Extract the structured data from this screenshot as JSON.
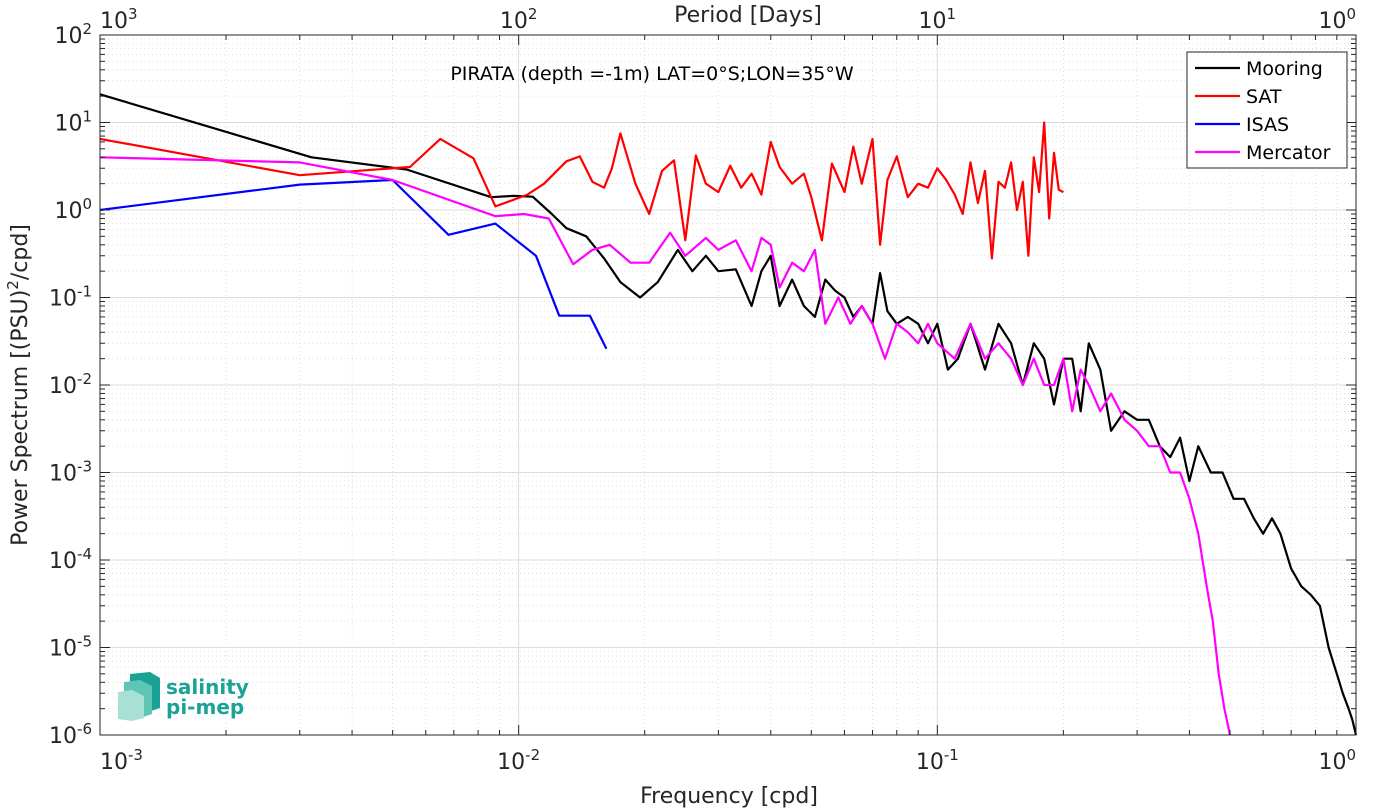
{
  "chart_data": {
    "type": "line",
    "title": "PIRATA (depth =-1m) LAT=0°S;LON=35°W",
    "xlabel": "Frequency [cpd]",
    "ylabel": "Power Spectrum [(PSU)²/cpd]",
    "ylabel_parts": {
      "pre": "Power Spectrum [(PSU)",
      "sup": "2",
      "post": "/cpd]"
    },
    "top_xlabel": "Period [Days]",
    "x_scale": "log",
    "y_scale": "log",
    "xlim": [
      0.001,
      1
    ],
    "ylim": [
      1e-06,
      100
    ],
    "grid": true,
    "legend_position": "top-right",
    "x_ticks": [
      {
        "value": 0.001,
        "base": "10",
        "exp": "-3"
      },
      {
        "value": 0.01,
        "base": "10",
        "exp": "-2"
      },
      {
        "value": 0.1,
        "base": "10",
        "exp": "-1"
      },
      {
        "value": 1,
        "base": "10",
        "exp": "0"
      }
    ],
    "y_ticks": [
      {
        "value": 100,
        "base": "10",
        "exp": "2"
      },
      {
        "value": 10,
        "base": "10",
        "exp": "1"
      },
      {
        "value": 1,
        "base": "10",
        "exp": "0"
      },
      {
        "value": 0.1,
        "base": "10",
        "exp": "-1"
      },
      {
        "value": 0.01,
        "base": "10",
        "exp": "-2"
      },
      {
        "value": 0.001,
        "base": "10",
        "exp": "-3"
      },
      {
        "value": 0.0001,
        "base": "10",
        "exp": "-4"
      },
      {
        "value": 1e-05,
        "base": "10",
        "exp": "-5"
      },
      {
        "value": 1e-06,
        "base": "10",
        "exp": "-6"
      }
    ],
    "top_ticks": [
      {
        "period": 1000,
        "base": "10",
        "exp": "3"
      },
      {
        "period": 100,
        "base": "10",
        "exp": "2"
      },
      {
        "period": 10,
        "base": "10",
        "exp": "1"
      },
      {
        "period": 1,
        "base": "10",
        "exp": "0"
      }
    ],
    "series": [
      {
        "name": "Mooring",
        "color": "#000000",
        "x": [
          0.001,
          0.0032,
          0.0054,
          0.0086,
          0.0097,
          0.0108,
          0.012,
          0.013,
          0.0145,
          0.016,
          0.0175,
          0.0195,
          0.0215,
          0.024,
          0.026,
          0.028,
          0.03,
          0.033,
          0.036,
          0.038,
          0.04,
          0.042,
          0.045,
          0.048,
          0.051,
          0.054,
          0.057,
          0.06,
          0.063,
          0.066,
          0.07,
          0.073,
          0.076,
          0.08,
          0.085,
          0.09,
          0.095,
          0.1,
          0.106,
          0.112,
          0.12,
          0.13,
          0.14,
          0.15,
          0.16,
          0.17,
          0.18,
          0.19,
          0.2,
          0.21,
          0.22,
          0.23,
          0.245,
          0.26,
          0.28,
          0.3,
          0.32,
          0.34,
          0.36,
          0.38,
          0.4,
          0.42,
          0.45,
          0.48,
          0.51,
          0.54,
          0.57,
          0.6,
          0.63,
          0.66,
          0.7,
          0.74,
          0.78,
          0.82,
          0.86,
          0.9,
          0.93,
          0.96,
          0.98,
          1.0
        ],
        "y": [
          21,
          4,
          2.9,
          1.4,
          1.45,
          1.42,
          0.9,
          0.62,
          0.5,
          0.28,
          0.15,
          0.1,
          0.15,
          0.35,
          0.2,
          0.3,
          0.2,
          0.21,
          0.08,
          0.2,
          0.3,
          0.08,
          0.16,
          0.08,
          0.06,
          0.16,
          0.12,
          0.1,
          0.06,
          0.08,
          0.05,
          0.19,
          0.07,
          0.05,
          0.06,
          0.05,
          0.03,
          0.05,
          0.015,
          0.02,
          0.05,
          0.015,
          0.05,
          0.03,
          0.01,
          0.03,
          0.02,
          0.006,
          0.02,
          0.02,
          0.005,
          0.03,
          0.015,
          0.003,
          0.005,
          0.004,
          0.004,
          0.002,
          0.0015,
          0.0025,
          0.0008,
          0.002,
          0.001,
          0.001,
          0.0005,
          0.0005,
          0.0003,
          0.0002,
          0.0003,
          0.0002,
          8e-05,
          5e-05,
          4e-05,
          3e-05,
          1e-05,
          5e-06,
          3e-06,
          2e-06,
          1.5e-06,
          1e-06
        ]
      },
      {
        "name": "SAT",
        "color": "#ff0000",
        "x": [
          0.001,
          0.003,
          0.0055,
          0.0065,
          0.0078,
          0.0088,
          0.0105,
          0.0115,
          0.013,
          0.014,
          0.015,
          0.016,
          0.0167,
          0.0175,
          0.019,
          0.0205,
          0.022,
          0.0235,
          0.025,
          0.0265,
          0.028,
          0.03,
          0.032,
          0.034,
          0.036,
          0.038,
          0.04,
          0.042,
          0.045,
          0.048,
          0.05,
          0.053,
          0.056,
          0.06,
          0.063,
          0.066,
          0.07,
          0.073,
          0.076,
          0.08,
          0.085,
          0.09,
          0.095,
          0.1,
          0.105,
          0.11,
          0.115,
          0.12,
          0.125,
          0.13,
          0.135,
          0.14,
          0.145,
          0.15,
          0.155,
          0.16,
          0.165,
          0.17,
          0.175,
          0.18,
          0.185,
          0.19,
          0.195,
          0.2
        ],
        "y": [
          6.5,
          2.5,
          3.1,
          6.5,
          3.9,
          1.1,
          1.5,
          2.0,
          3.6,
          4.1,
          2.1,
          1.8,
          3.0,
          7.5,
          2.0,
          0.9,
          2.8,
          3.7,
          0.45,
          4.2,
          2.0,
          1.6,
          3.2,
          1.8,
          2.6,
          1.5,
          6.0,
          3.1,
          2.0,
          2.6,
          1.4,
          0.45,
          3.4,
          1.6,
          5.3,
          2.0,
          6.5,
          0.4,
          2.2,
          4.1,
          1.4,
          2.0,
          1.8,
          3.0,
          2.2,
          1.5,
          0.9,
          3.5,
          1.2,
          2.8,
          0.28,
          2.1,
          1.8,
          3.5,
          1.0,
          2.1,
          0.3,
          4.0,
          1.6,
          10,
          0.8,
          4.5,
          1.7,
          1.6
        ]
      },
      {
        "name": "ISAS",
        "color": "#0000ff",
        "x": [
          0.001,
          0.003,
          0.005,
          0.0068,
          0.0088,
          0.011,
          0.0125,
          0.0132,
          0.0148,
          0.0162
        ],
        "y": [
          1.0,
          1.95,
          2.2,
          0.52,
          0.7,
          0.3,
          0.062,
          0.062,
          0.062,
          0.026
        ]
      },
      {
        "name": "Mercator",
        "color": "#ff00ff",
        "x": [
          0.001,
          0.003,
          0.005,
          0.0088,
          0.0103,
          0.0118,
          0.0135,
          0.015,
          0.0165,
          0.0185,
          0.0205,
          0.023,
          0.025,
          0.028,
          0.03,
          0.033,
          0.036,
          0.038,
          0.04,
          0.042,
          0.045,
          0.048,
          0.051,
          0.054,
          0.058,
          0.062,
          0.066,
          0.07,
          0.075,
          0.08,
          0.085,
          0.09,
          0.095,
          0.1,
          0.11,
          0.12,
          0.13,
          0.14,
          0.15,
          0.16,
          0.17,
          0.18,
          0.19,
          0.2,
          0.21,
          0.22,
          0.23,
          0.245,
          0.26,
          0.28,
          0.3,
          0.32,
          0.34,
          0.36,
          0.38,
          0.4,
          0.42,
          0.44,
          0.455,
          0.47,
          0.485,
          0.5
        ],
        "y": [
          4.0,
          3.5,
          2.2,
          0.85,
          0.9,
          0.8,
          0.24,
          0.35,
          0.4,
          0.25,
          0.25,
          0.55,
          0.3,
          0.48,
          0.35,
          0.45,
          0.2,
          0.48,
          0.4,
          0.13,
          0.25,
          0.2,
          0.35,
          0.05,
          0.1,
          0.05,
          0.08,
          0.05,
          0.02,
          0.05,
          0.04,
          0.03,
          0.05,
          0.03,
          0.02,
          0.05,
          0.02,
          0.03,
          0.02,
          0.01,
          0.02,
          0.01,
          0.01,
          0.02,
          0.005,
          0.015,
          0.01,
          0.005,
          0.008,
          0.004,
          0.003,
          0.002,
          0.002,
          0.001,
          0.001,
          0.0005,
          0.0002,
          5e-05,
          2e-05,
          5e-06,
          2e-06,
          1e-06
        ]
      }
    ]
  },
  "logo": {
    "line1": "salinity",
    "line2": "pi-mep",
    "color": "#1aa395"
  }
}
